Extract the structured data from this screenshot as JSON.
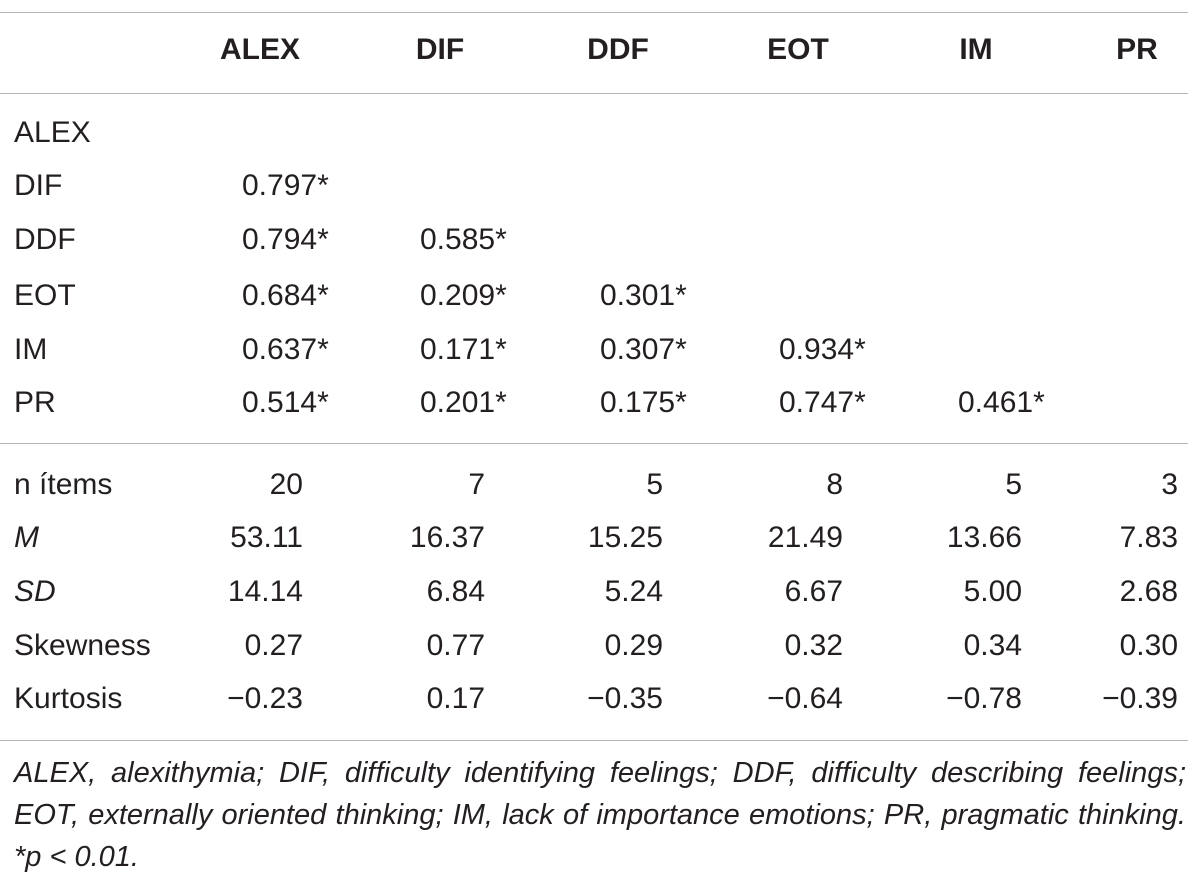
{
  "table": {
    "columns": [
      "ALEX",
      "DIF",
      "DDF",
      "EOT",
      "IM",
      "PR"
    ],
    "correlation_rows": [
      {
        "label": "ALEX",
        "values": []
      },
      {
        "label": "DIF",
        "values": [
          "0.797*"
        ]
      },
      {
        "label": "DDF",
        "values": [
          "0.794*",
          "0.585*"
        ]
      },
      {
        "label": "EOT",
        "values": [
          "0.684*",
          "0.209*",
          "0.301*"
        ]
      },
      {
        "label": "IM",
        "values": [
          "0.637*",
          "0.171*",
          "0.307*",
          "0.934*"
        ]
      },
      {
        "label": "PR",
        "values": [
          "0.514*",
          "0.201*",
          "0.175*",
          "0.747*",
          "0.461*"
        ]
      }
    ],
    "stat_rows": [
      {
        "label": "n ítems",
        "values": [
          "20",
          "7",
          "5",
          "8",
          "5",
          "3"
        ]
      },
      {
        "label": "M",
        "italic": true,
        "values": [
          "53.11",
          "16.37",
          "15.25",
          "21.49",
          "13.66",
          "7.83"
        ]
      },
      {
        "label": "SD",
        "italic": true,
        "values": [
          "14.14",
          "6.84",
          "5.24",
          "6.67",
          "5.00",
          "2.68"
        ]
      },
      {
        "label": "Skewness",
        "values": [
          "0.27",
          "0.77",
          "0.29",
          "0.32",
          "0.34",
          "0.30"
        ]
      },
      {
        "label": "Kurtosis",
        "values": [
          "−0.23",
          "0.17",
          "−0.35",
          "−0.64",
          "−0.78",
          "−0.39"
        ]
      }
    ]
  },
  "footnote": "ALEX, alexithymia; DIF, difficulty identifying feelings; DDF, difficulty describing feelings; EOT, externally oriented thinking; IM, lack of importance emotions; PR, pragmatic thinking. *p < 0.01."
}
